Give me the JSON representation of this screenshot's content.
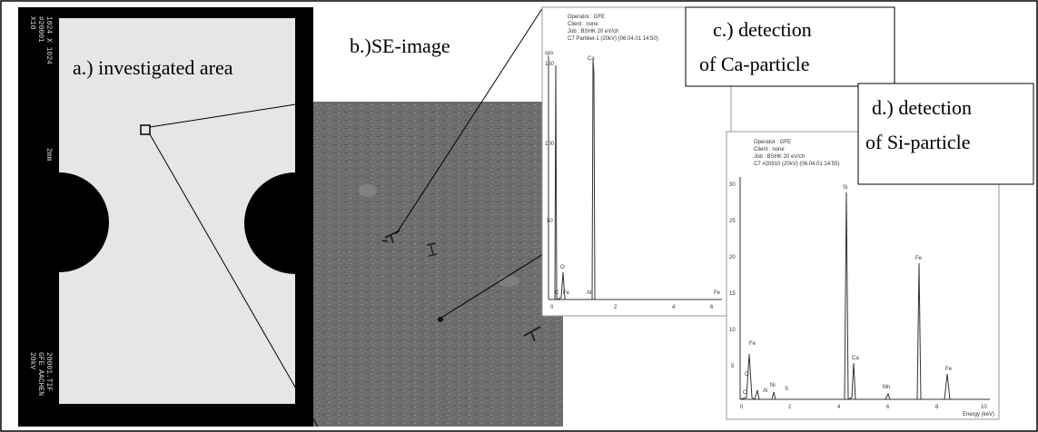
{
  "panel_a": {
    "label": "a.) investigated area",
    "side_top": [
      "X10",
      "#20001",
      "1024 X 1024"
    ],
    "scale": "2mm",
    "side_bottom": [
      "20kV",
      "GFE AACHEN",
      "20001.TIF"
    ]
  },
  "panel_b": {
    "label": "b.)SE-image"
  },
  "panel_c": {
    "label": [
      "c.) detection",
      "of Ca-particle"
    ],
    "header": [
      "Operator : GFE",
      "Client : none",
      "Job : BSHK 20 eV/ch",
      "C7 Partikel-1 (20kV) (06.04.01 14:50)"
    ],
    "y_unit": "cps",
    "yticks": [
      "150",
      "100",
      "50"
    ],
    "xticks": [
      "0",
      "2",
      "4",
      "6"
    ],
    "peaks": [
      "Ca",
      "O",
      "C",
      "Fe",
      "Al",
      "Fe"
    ]
  },
  "panel_d": {
    "label": [
      "d.) detection",
      "of Si-particle"
    ],
    "header": [
      "Operator : GFE",
      "Client : none",
      "Job : BSHK 20 eV/ch",
      "C7 #20910 (20kV) (06.04.01 14:55)"
    ],
    "yticks": [
      "30",
      "25",
      "20",
      "15",
      "10",
      "5"
    ],
    "xticks": [
      "0",
      "2",
      "4",
      "6",
      "8",
      "10"
    ],
    "x_label": "Energy (keV)",
    "peaks": [
      "Si",
      "Fe",
      "O",
      "C",
      "Al",
      "Ni",
      "S",
      "Ca",
      "Mn",
      "Fe",
      "Fe"
    ]
  }
}
